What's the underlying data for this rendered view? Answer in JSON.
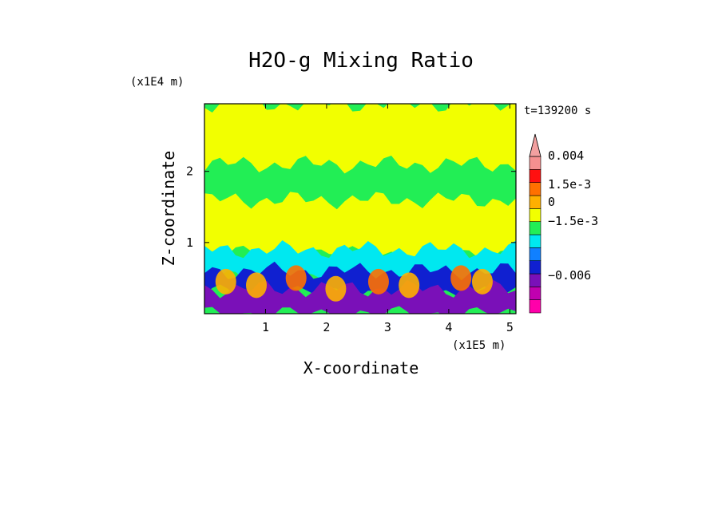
{
  "chart_data": {
    "type": "heatmap",
    "title": "H2O-g Mixing Ratio",
    "xlabel": "X-coordinate",
    "ylabel": "Z-coordinate",
    "x_unit": "(x1E5 m)",
    "y_unit": "(x1E4 m)",
    "time_label": "t=139200 s",
    "xlim": [
      0,
      5.1
    ],
    "ylim": [
      0,
      2.95
    ],
    "x_ticks": [
      1,
      2,
      3,
      4,
      5
    ],
    "x_tick_labels": [
      "1",
      "2",
      "3",
      "4",
      "5"
    ],
    "y_ticks": [
      1,
      2
    ],
    "y_tick_labels": [
      "1",
      "2"
    ],
    "colorbar": {
      "labels": [
        "0.004",
        "1.5e-3",
        "0",
        "−1.5e-3",
        "−0.006"
      ],
      "extend": "max",
      "levels": [
        {
          "color": "#ff00aa"
        },
        {
          "color": "#c000b0"
        },
        {
          "color": "#7a10b8"
        },
        {
          "color": "#1020d0"
        },
        {
          "color": "#1080ff"
        },
        {
          "color": "#00e8f0"
        },
        {
          "color": "#22ee55"
        },
        {
          "color": "#f2ff00"
        },
        {
          "color": "#ffb000"
        },
        {
          "color": "#ff7000"
        },
        {
          "color": "#ff1010"
        },
        {
          "color": "#f59090"
        }
      ],
      "extend_color": "#f2a0a0"
    },
    "field_layers": [
      {
        "name": "upper",
        "z_bottom": 1.6,
        "z_top": 2.95,
        "color": "#f2ff00"
      },
      {
        "name": "band",
        "z_bottom": 1.35,
        "z_top": 2.1,
        "color": "#22ee55"
      },
      {
        "name": "middle",
        "z_bottom": 0.85,
        "z_top": 1.6,
        "color": "#f2ff00"
      },
      {
        "name": "cyan",
        "z_bottom": 0.5,
        "z_top": 0.9,
        "color": "#00e8f0"
      },
      {
        "name": "blue",
        "z_bottom": 0.3,
        "z_top": 0.6,
        "color": "#1020d0"
      },
      {
        "name": "purple",
        "z_bottom": 0.0,
        "z_top": 0.35,
        "color": "#7a10b8"
      }
    ],
    "plumes": [
      {
        "x": 0.35,
        "z": 0.45,
        "color": "#ffb000"
      },
      {
        "x": 0.85,
        "z": 0.4,
        "color": "#ffb000"
      },
      {
        "x": 1.5,
        "z": 0.5,
        "color": "#ff7000"
      },
      {
        "x": 2.15,
        "z": 0.35,
        "color": "#ffb000"
      },
      {
        "x": 2.85,
        "z": 0.45,
        "color": "#ff7000"
      },
      {
        "x": 3.35,
        "z": 0.4,
        "color": "#ffb000"
      },
      {
        "x": 4.2,
        "z": 0.5,
        "color": "#ff7000"
      },
      {
        "x": 4.55,
        "z": 0.45,
        "color": "#ffb000"
      }
    ]
  }
}
